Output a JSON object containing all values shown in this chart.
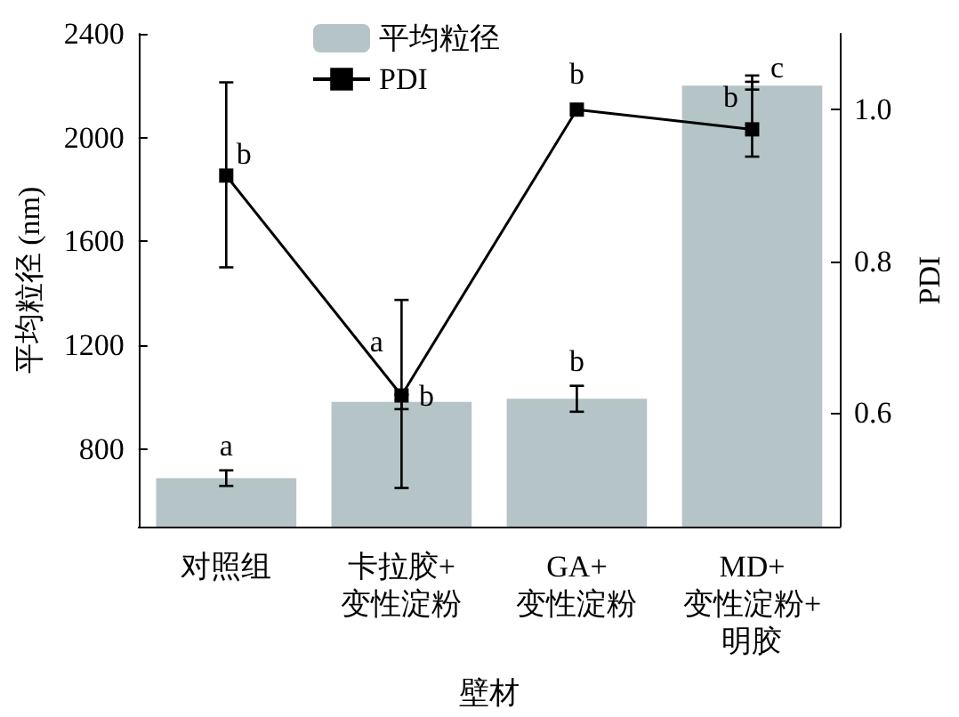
{
  "chart_data": {
    "type": "bar",
    "xlabel": "壁材",
    "ylabel": "平均粒径 (nm)",
    "y2label": "PDI",
    "categories": [
      "对照组",
      "卡拉胶+\n变性淀粉",
      "GA+\n变性淀粉",
      "MD+\n变性淀粉+\n明胶"
    ],
    "series": [
      {
        "name": "平均粒径",
        "color": "#b5c4c7",
        "values": [
          687,
          981,
          993,
          2200
        ],
        "errors": [
          30,
          28,
          50,
          15
        ],
        "value_labels": [
          "a",
          "a",
          "b",
          "c"
        ]
      },
      {
        "name": "PDI",
        "type": "line",
        "axis": "y2",
        "color": "#000000",
        "marker": "square",
        "line_style": "solid",
        "values": [
          0.913,
          0.623,
          1.0,
          0.974
        ],
        "errors": [
          [
            0.792,
            1.036
          ],
          [
            0.501,
            0.749
          ],
          null,
          [
            0.938,
            1.045
          ]
        ],
        "value_labels": [
          "b",
          "b",
          "b",
          "b"
        ]
      }
    ],
    "ylim": [
      500,
      2400
    ],
    "yticks": [
      800,
      1200,
      1600,
      2000,
      2400
    ],
    "y2lim": [
      0.45,
      1.1
    ],
    "y2ticks": [
      0.6,
      0.8,
      {
        "value": 1,
        "label": "1.0"
      }
    ],
    "legend": "top",
    "grid": false
  }
}
